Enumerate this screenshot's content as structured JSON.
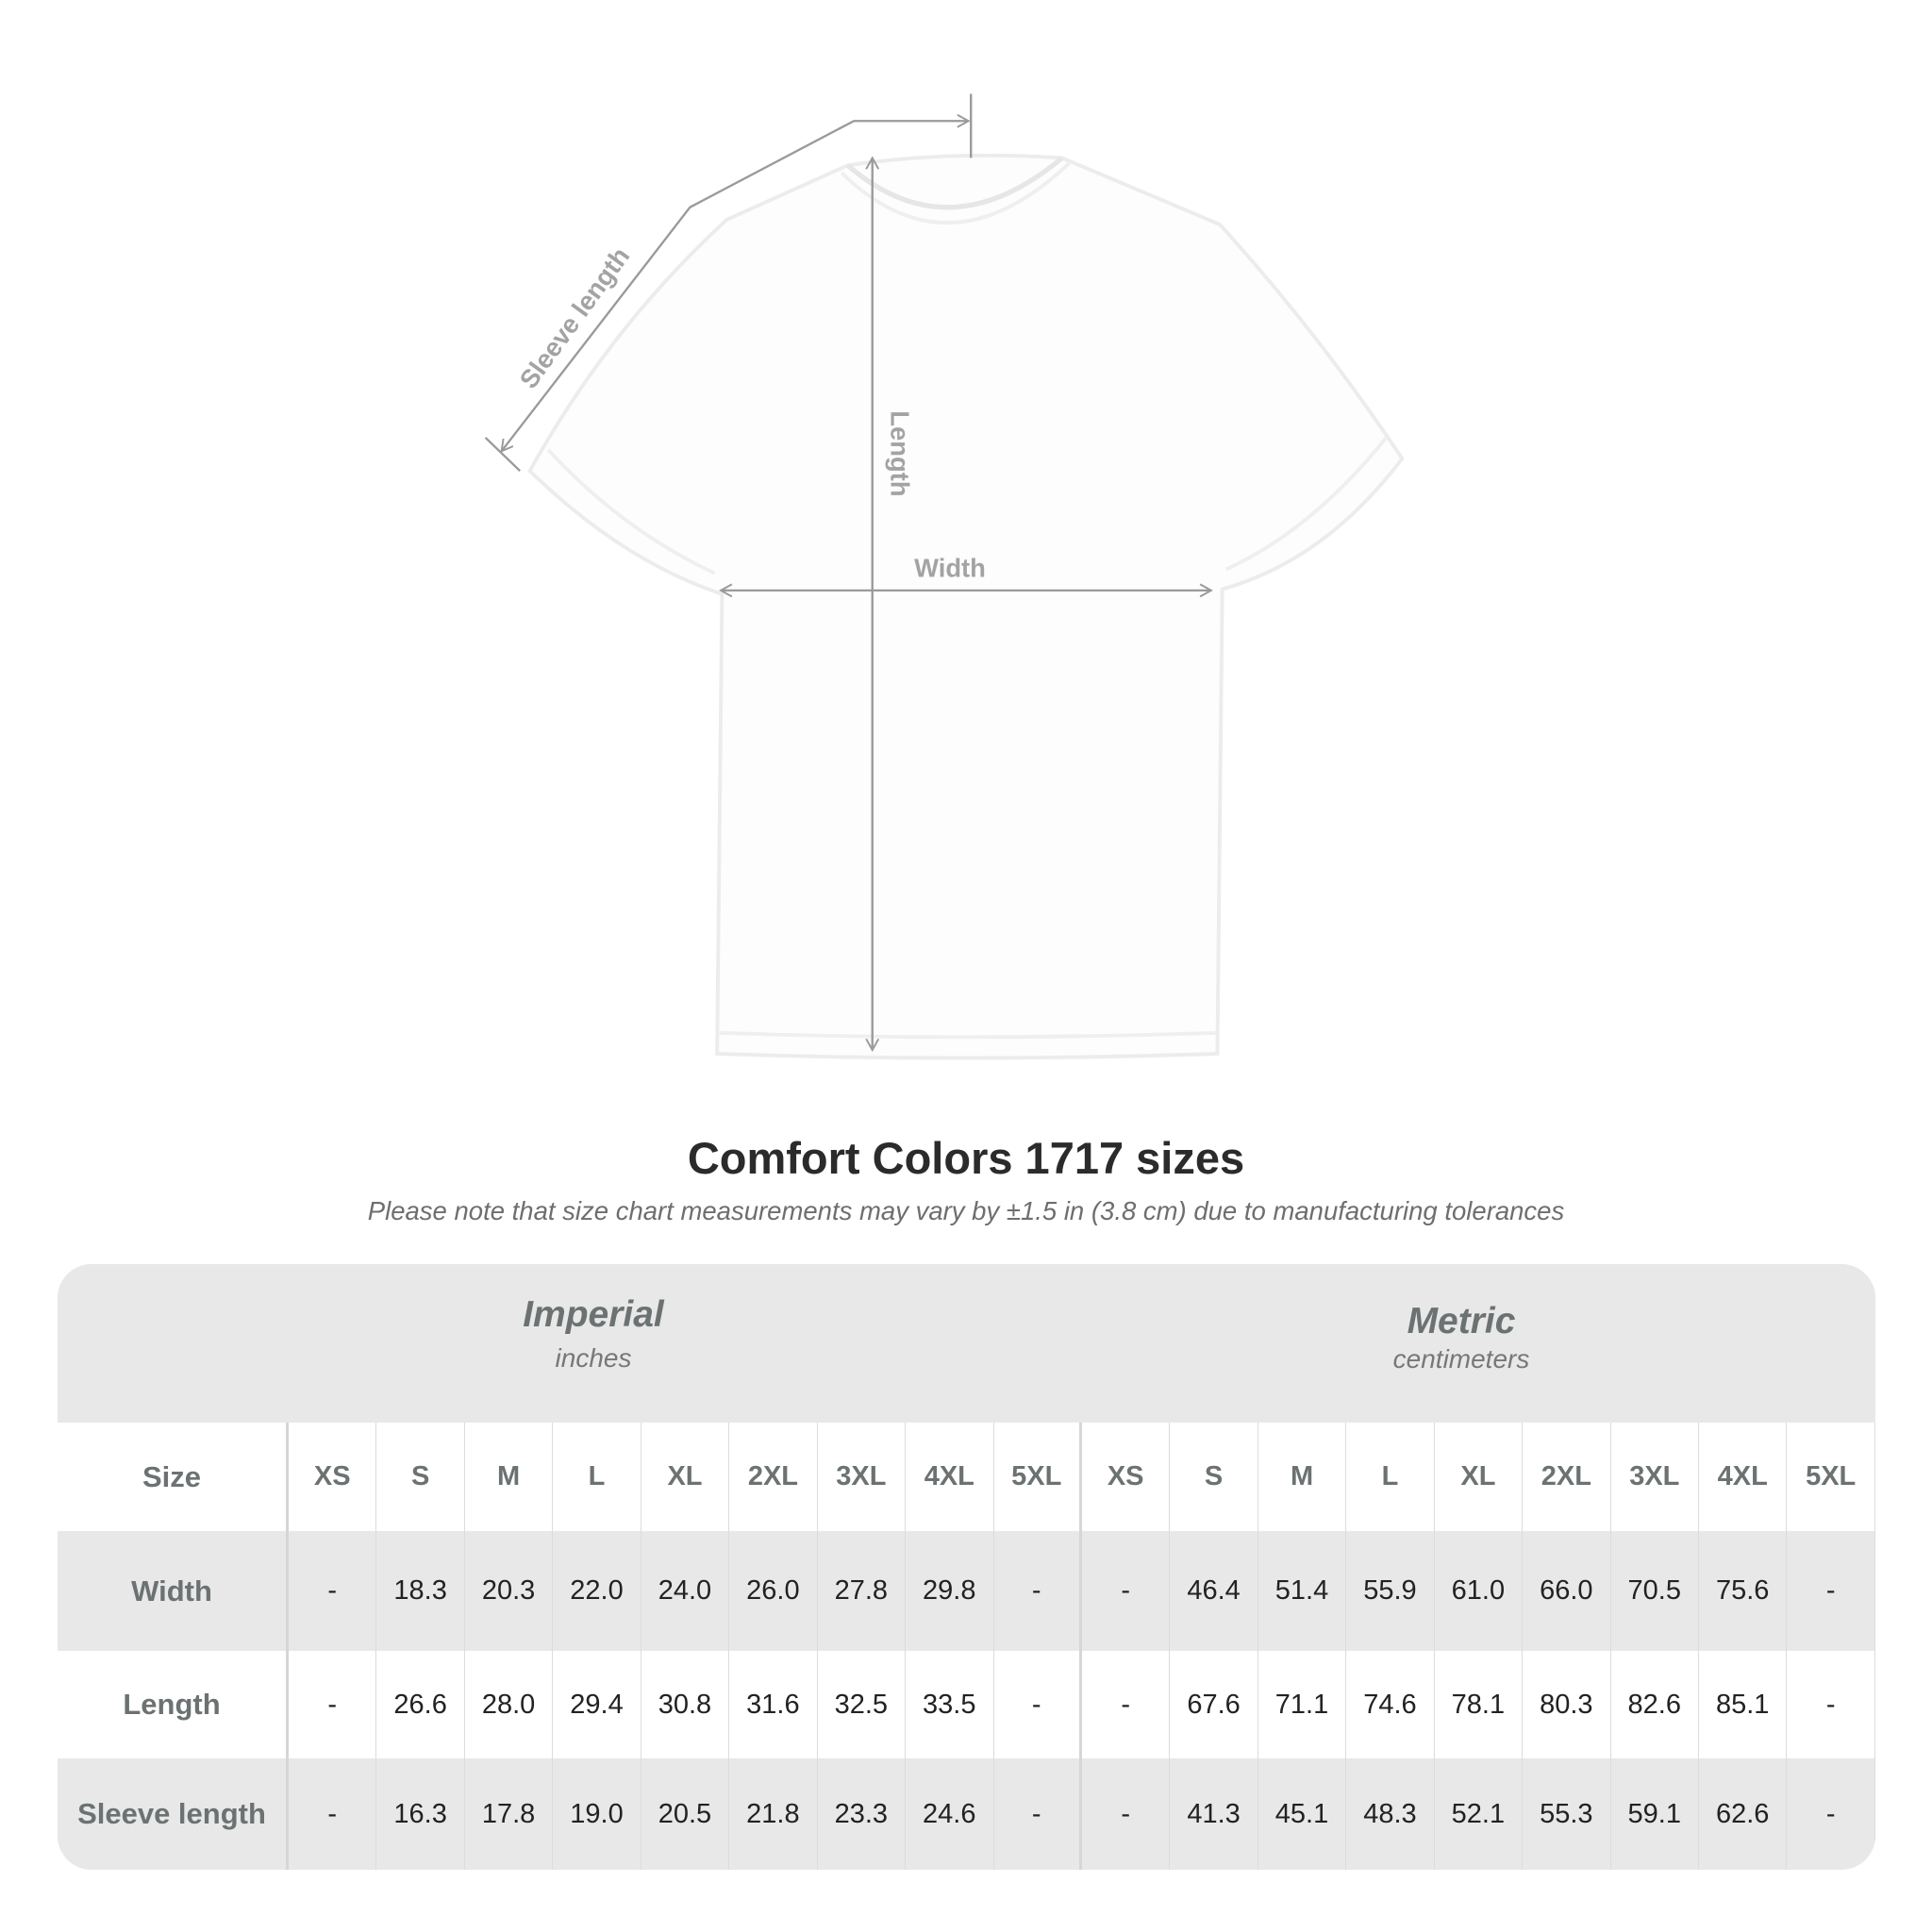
{
  "diagram": {
    "labels": {
      "sleeve": "Sleeve length",
      "length": "Length",
      "width": "Width"
    },
    "colors": {
      "measure_line": "#9a9a9a",
      "shirt": "#ffffff"
    }
  },
  "title": "Comfort Colors 1717 sizes",
  "subtitle": "Please note that size chart measurements may vary by ±1.5 in (3.8 cm) due to manufacturing tolerances",
  "table": {
    "imperial": {
      "name": "Imperial",
      "unit": "inches"
    },
    "metric": {
      "name": "Metric",
      "unit": "centimeters"
    },
    "size_label": "Size",
    "sizes": [
      "XS",
      "S",
      "M",
      "L",
      "XL",
      "2XL",
      "3XL",
      "4XL",
      "5XL"
    ],
    "rows": [
      {
        "label": "Width",
        "imperial": [
          "-",
          "18.3",
          "20.3",
          "22.0",
          "24.0",
          "26.0",
          "27.8",
          "29.8",
          "-"
        ],
        "metric": [
          "-",
          "46.4",
          "51.4",
          "55.9",
          "61.0",
          "66.0",
          "70.5",
          "75.6",
          "-"
        ]
      },
      {
        "label": "Length",
        "imperial": [
          "-",
          "26.6",
          "28.0",
          "29.4",
          "30.8",
          "31.6",
          "32.5",
          "33.5",
          "-"
        ],
        "metric": [
          "-",
          "67.6",
          "71.1",
          "74.6",
          "78.1",
          "80.3",
          "82.6",
          "85.1",
          "-"
        ]
      },
      {
        "label": "Sleeve length",
        "imperial": [
          "-",
          "16.3",
          "17.8",
          "19.0",
          "20.5",
          "21.8",
          "23.3",
          "24.6",
          "-"
        ],
        "metric": [
          "-",
          "41.3",
          "45.1",
          "48.3",
          "52.1",
          "55.3",
          "59.1",
          "62.6",
          "-"
        ]
      }
    ]
  }
}
